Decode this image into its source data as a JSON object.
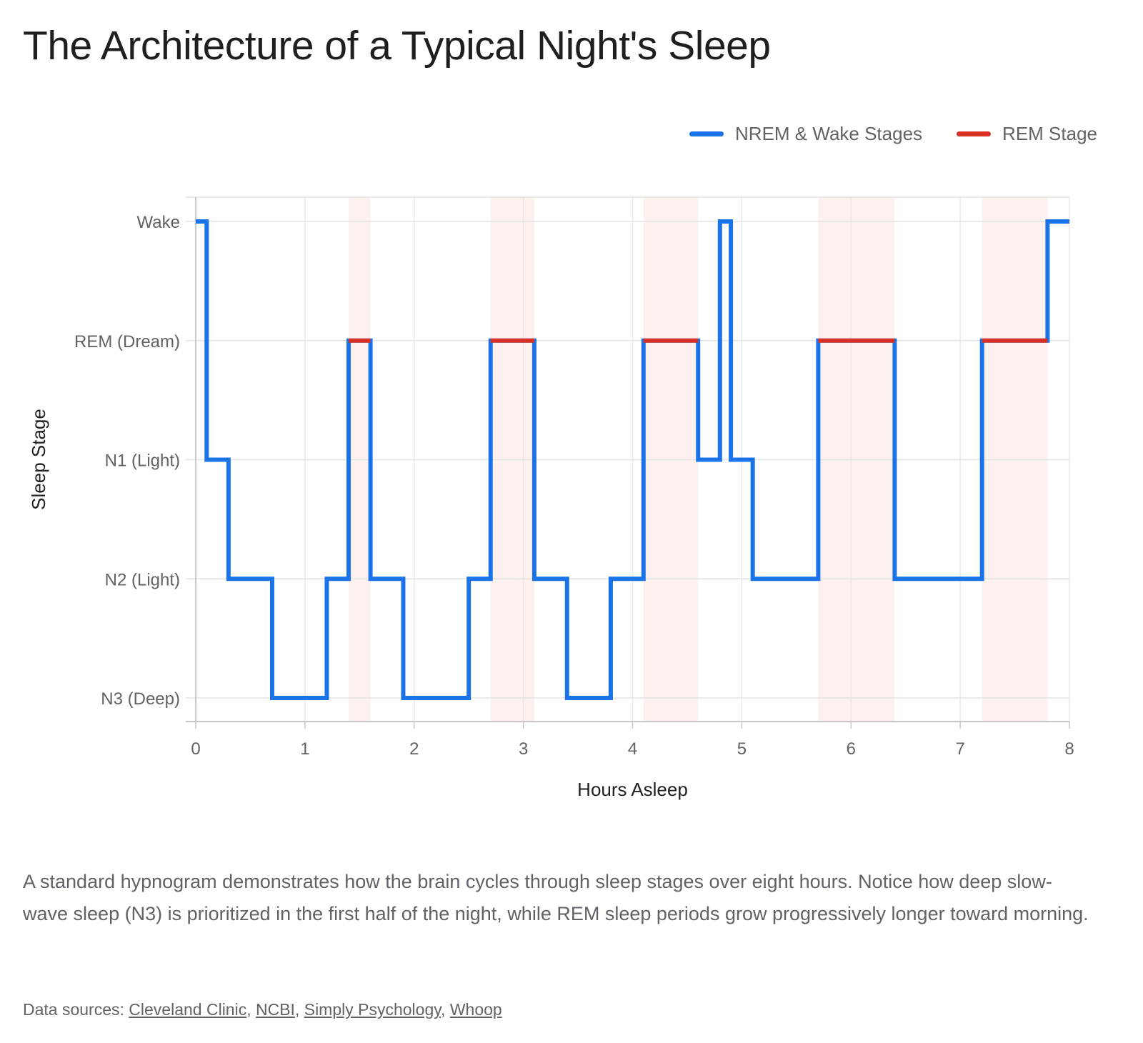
{
  "title": "The Architecture of a Typical Night's Sleep",
  "legend": [
    {
      "label": "NREM & Wake Stages",
      "color": "#1a73e8"
    },
    {
      "label": "REM Stage",
      "color": "#d93025"
    }
  ],
  "chart_data": {
    "type": "line",
    "step": "after",
    "xlabel": "Hours Asleep",
    "ylabel": "Sleep Stage",
    "xlim": [
      0,
      8
    ],
    "x_ticks": [
      0,
      1,
      2,
      3,
      4,
      5,
      6,
      7,
      8
    ],
    "y_categories": [
      "N3 (Deep)",
      "N2 (Light)",
      "N1 (Light)",
      "REM (Dream)",
      "Wake"
    ],
    "grid": true,
    "legend_position": "top-right",
    "series": [
      {
        "name": "NREM & Wake Stages",
        "color": "#1a73e8",
        "points": [
          {
            "x": 0,
            "stage": "Wake"
          },
          {
            "x": 0.1,
            "stage": "N1 (Light)"
          },
          {
            "x": 0.3,
            "stage": "N2 (Light)"
          },
          {
            "x": 0.7,
            "stage": "N3 (Deep)"
          },
          {
            "x": 1.2,
            "stage": "N2 (Light)"
          },
          {
            "x": 1.4,
            "stage": "REM (Dream)"
          },
          {
            "x": 1.6,
            "stage": "N2 (Light)"
          },
          {
            "x": 1.9,
            "stage": "N3 (Deep)"
          },
          {
            "x": 2.5,
            "stage": "N2 (Light)"
          },
          {
            "x": 2.7,
            "stage": "REM (Dream)"
          },
          {
            "x": 3.1,
            "stage": "N2 (Light)"
          },
          {
            "x": 3.4,
            "stage": "N3 (Deep)"
          },
          {
            "x": 3.8,
            "stage": "N2 (Light)"
          },
          {
            "x": 4.1,
            "stage": "REM (Dream)"
          },
          {
            "x": 4.6,
            "stage": "N1 (Light)"
          },
          {
            "x": 4.8,
            "stage": "Wake"
          },
          {
            "x": 4.9,
            "stage": "N1 (Light)"
          },
          {
            "x": 5.1,
            "stage": "N2 (Light)"
          },
          {
            "x": 5.7,
            "stage": "REM (Dream)"
          },
          {
            "x": 6.4,
            "stage": "N2 (Light)"
          },
          {
            "x": 7.2,
            "stage": "REM (Dream)"
          },
          {
            "x": 7.8,
            "stage": "Wake"
          },
          {
            "x": 8,
            "stage": "Wake"
          }
        ]
      },
      {
        "name": "REM Stage",
        "color": "#d93025",
        "periods": [
          [
            1.4,
            1.6
          ],
          [
            2.7,
            3.1
          ],
          [
            4.1,
            4.6
          ],
          [
            5.7,
            6.4
          ],
          [
            7.2,
            7.8
          ]
        ]
      }
    ]
  },
  "caption": "A standard hypnogram demonstrates how the brain cycles through sleep stages over eight hours. Notice how deep slow-wave sleep (N3) is prioritized in the first half of the night, while REM sleep periods grow progressively longer toward morning.",
  "sources": {
    "prefix": "Data sources: ",
    "links": [
      "Cleveland Clinic",
      "NCBI",
      "Simply Psychology",
      "Whoop"
    ]
  }
}
